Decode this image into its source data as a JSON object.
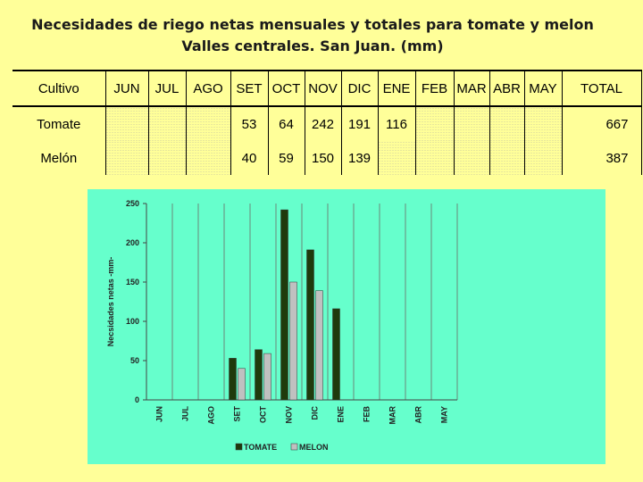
{
  "title": {
    "line1": "Necesidades de riego netas mensuales y totales para tomate y melon",
    "line2": "Valles centrales. San Juan. (mm)"
  },
  "table": {
    "headers": [
      "Cultivo",
      "JUN",
      "JUL",
      "AGO",
      "SET",
      "OCT",
      "NOV",
      "DIC",
      "ENE",
      "FEB",
      "MAR",
      "ABR",
      "MAY",
      "TOTAL"
    ],
    "rows": [
      {
        "crop": "Tomate",
        "values": [
          "",
          "",
          "",
          "53",
          "64",
          "242",
          "191",
          "116",
          "",
          "",
          "",
          ""
        ],
        "total": "667"
      },
      {
        "crop": "Melón",
        "values": [
          "",
          "",
          "",
          "40",
          "59",
          "150",
          "139",
          "",
          "",
          "",
          "",
          ""
        ],
        "total": "387"
      }
    ]
  },
  "chart_data": {
    "type": "bar",
    "categories": [
      "JUN",
      "JUL",
      "AGO",
      "SET",
      "OCT",
      "NOV",
      "DIC",
      "ENE",
      "FEB",
      "MAR",
      "ABR",
      "MAY"
    ],
    "series": [
      {
        "name": "TOMATE",
        "values": [
          0,
          0,
          0,
          53,
          64,
          242,
          191,
          116,
          0,
          0,
          0,
          0
        ],
        "color": "#1F3A0C"
      },
      {
        "name": "MELON",
        "values": [
          0,
          0,
          0,
          40,
          59,
          150,
          139,
          0,
          0,
          0,
          0,
          0
        ],
        "color": "#C0C0C0"
      }
    ],
    "ylabel": "Necsidades netas -mm-",
    "ylim": [
      0,
      250
    ],
    "yticks": [
      0,
      50,
      100,
      150,
      200,
      250
    ],
    "grid": "vertical",
    "legend": "bottom",
    "background": "#66FFCC"
  }
}
